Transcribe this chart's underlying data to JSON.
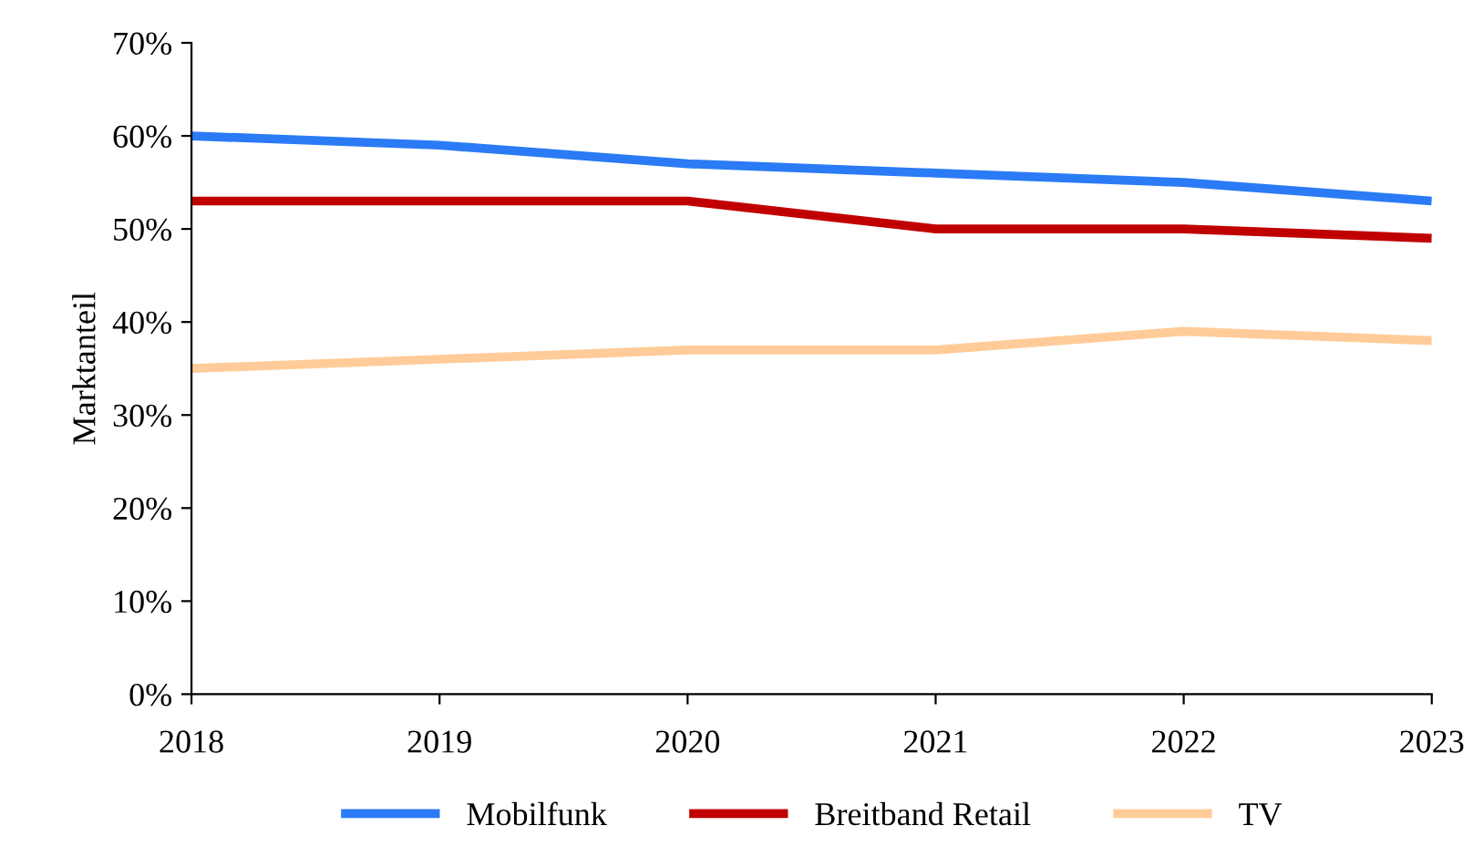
{
  "chart_data": {
    "type": "line",
    "ylabel": "Marktanteil",
    "categories": [
      "2018",
      "2019",
      "2020",
      "2021",
      "2022",
      "2023"
    ],
    "series": [
      {
        "name": "Mobilfunk",
        "color": "#2a7bf5",
        "values": [
          60,
          59,
          57,
          56,
          55,
          53
        ]
      },
      {
        "name": "Breitband Retail",
        "color": "#c00000",
        "values": [
          53,
          53,
          53,
          50,
          50,
          49
        ]
      },
      {
        "name": "TV",
        "color": "#ffcc99",
        "values": [
          35,
          36,
          37,
          37,
          39,
          38
        ]
      }
    ],
    "ylim": [
      0,
      70
    ],
    "yticks": [
      {
        "value": 0,
        "label": "0%"
      },
      {
        "value": 10,
        "label": "10%"
      },
      {
        "value": 20,
        "label": "20%"
      },
      {
        "value": 30,
        "label": "30%"
      },
      {
        "value": 40,
        "label": "40%"
      },
      {
        "value": 50,
        "label": "50%"
      },
      {
        "value": 60,
        "label": "60%"
      },
      {
        "value": 70,
        "label": "70%"
      }
    ],
    "grid": false,
    "legend": "bottom",
    "marker": "none",
    "line_style": "solid"
  }
}
